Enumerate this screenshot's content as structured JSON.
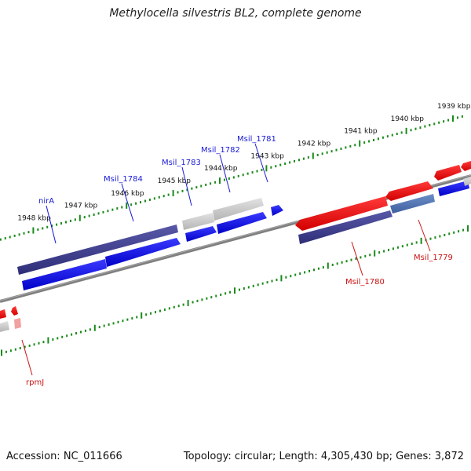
{
  "header": {
    "title": "Methylocella silvestris BL2, complete genome"
  },
  "footer": {
    "accession": "Accession: NC_011666",
    "summary": "Topology: circular; Length: 4,305,430 bp; Genes: 3,872"
  },
  "colors": {
    "forward_gene": "#0000ee",
    "reverse_gene": "#ee0000",
    "operon_purple": "#3c3c8c",
    "other_gene": "#c8c8c8",
    "tick": "#1a8a1a",
    "backbone": "#808080"
  },
  "scale": {
    "ticks": [
      {
        "kbp": 1939,
        "label": "1939 kbp"
      },
      {
        "kbp": 1940,
        "label": "1940 kbp"
      },
      {
        "kbp": 1941,
        "label": "1941 kbp"
      },
      {
        "kbp": 1942,
        "label": "1942 kbp"
      },
      {
        "kbp": 1943,
        "label": "1943 kbp"
      },
      {
        "kbp": 1944,
        "label": "1944 kbp"
      },
      {
        "kbp": 1945,
        "label": "1945 kbp"
      },
      {
        "kbp": 1946,
        "label": "1946 kbp"
      },
      {
        "kbp": 1947,
        "label": "1947 kbp"
      },
      {
        "kbp": 1948,
        "label": "1948 kbp"
      }
    ]
  },
  "gene_labels": [
    {
      "name": "nirA",
      "strand": "forward"
    },
    {
      "name": "Msil_1784",
      "strand": "forward"
    },
    {
      "name": "Msil_1783",
      "strand": "forward"
    },
    {
      "name": "Msil_1782",
      "strand": "forward"
    },
    {
      "name": "Msil_1781",
      "strand": "forward"
    },
    {
      "name": "Msil_1780",
      "strand": "reverse"
    },
    {
      "name": "Msil_1779",
      "strand": "reverse"
    },
    {
      "name": "rpmJ",
      "strand": "reverse"
    }
  ]
}
